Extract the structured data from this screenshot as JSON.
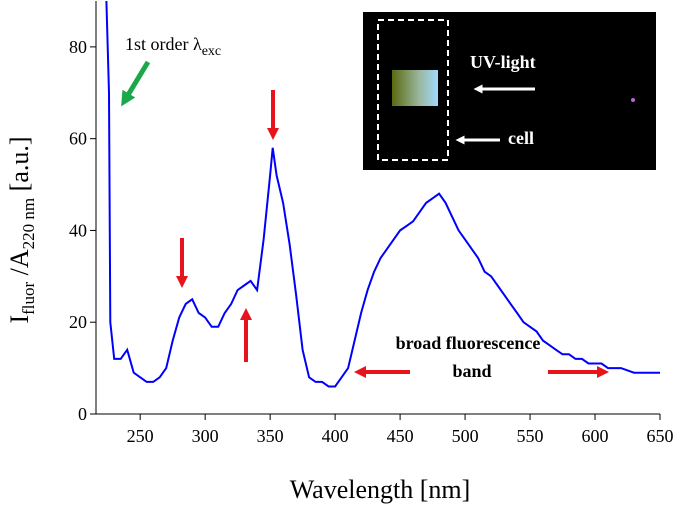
{
  "chart_data": {
    "type": "line",
    "x_label": "Wavelength [nm]",
    "y_label": {
      "main": "I",
      "sub1": "fluor",
      "mid": " /A",
      "sub2": "220 nm",
      "end": " [a.u.]"
    },
    "annotations": {
      "excitation": {
        "main": "1st order λ",
        "sub": "exc"
      },
      "band_line1": "broad fluorescence",
      "band_line2": "band",
      "uv_light": "UV-light",
      "cell": "cell"
    },
    "color": "#0000ff",
    "x": [
      224,
      226,
      227,
      230,
      235,
      240,
      245,
      250,
      255,
      260,
      265,
      270,
      275,
      280,
      285,
      290,
      295,
      300,
      305,
      310,
      315,
      320,
      325,
      330,
      335,
      340,
      345,
      350,
      352,
      355,
      360,
      365,
      370,
      375,
      380,
      385,
      390,
      395,
      400,
      405,
      410,
      415,
      420,
      425,
      430,
      435,
      440,
      445,
      450,
      455,
      460,
      465,
      470,
      475,
      480,
      485,
      490,
      495,
      500,
      505,
      510,
      515,
      520,
      525,
      530,
      535,
      540,
      545,
      550,
      555,
      560,
      565,
      570,
      575,
      580,
      585,
      590,
      595,
      600,
      605,
      610,
      620,
      630,
      640,
      650
    ],
    "values": [
      90,
      70,
      20,
      12,
      12,
      14,
      9,
      8,
      7,
      7,
      8,
      10,
      16,
      21,
      24,
      25,
      22,
      21,
      19,
      19,
      22,
      24,
      27,
      28,
      29,
      27,
      38,
      52,
      58,
      52,
      46,
      37,
      26,
      14,
      8,
      7,
      7,
      6,
      6,
      8,
      10,
      16,
      22,
      27,
      31,
      34,
      36,
      38,
      40,
      41,
      42,
      44,
      46,
      47,
      48,
      46,
      43,
      40,
      38,
      36,
      34,
      31,
      30,
      28,
      26,
      24,
      22,
      20,
      19,
      18,
      16,
      15,
      14,
      13,
      13,
      12,
      12,
      11,
      11,
      11,
      10,
      10,
      9,
      9,
      9
    ],
    "xlim": [
      216,
      650
    ],
    "ylim": [
      0,
      90
    ],
    "xticks": [
      250,
      300,
      350,
      400,
      450,
      500,
      550,
      600,
      650
    ],
    "yticks": [
      0,
      20,
      40,
      60,
      80
    ]
  }
}
